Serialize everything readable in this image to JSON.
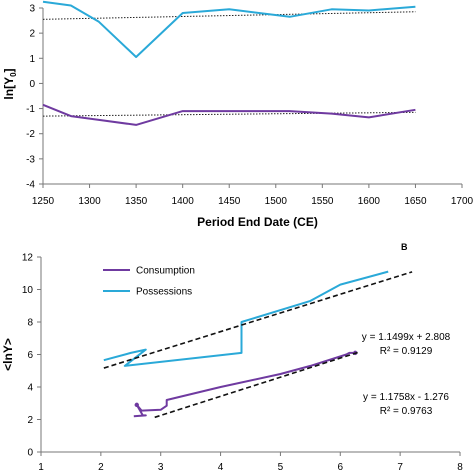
{
  "chart_data": [
    {
      "panel_label": "",
      "type": "line",
      "xlabel": "Period End Date (CE)",
      "ylabel": "ln[Y0]",
      "ylabel_main": "ln[Y",
      "ylabel_sub": "0",
      "ylabel_close": "]",
      "xlim": [
        1250,
        1700
      ],
      "ylim": [
        -4,
        3
      ],
      "xticks": [
        "1250",
        "1300",
        "1350",
        "1400",
        "1450",
        "1500",
        "1550",
        "1600",
        "1650",
        "1700"
      ],
      "yticks": [
        "-4",
        "-3",
        "-2",
        "-1",
        "0",
        "1",
        "2",
        "3"
      ],
      "grid": false,
      "series": [
        {
          "color": "#2aa9d8",
          "x": [
            1250,
            1280,
            1310,
            1350,
            1400,
            1450,
            1515,
            1560,
            1600,
            1650
          ],
          "y": [
            3.25,
            3.1,
            2.45,
            1.05,
            2.8,
            2.95,
            2.65,
            2.95,
            2.9,
            3.05
          ]
        },
        {
          "color": "#6f3aa0",
          "x": [
            1250,
            1280,
            1310,
            1350,
            1400,
            1450,
            1515,
            1560,
            1600,
            1650
          ],
          "y": [
            -0.85,
            -1.3,
            -1.45,
            -1.65,
            -1.1,
            -1.1,
            -1.1,
            -1.2,
            -1.35,
            -1.05
          ]
        }
      ],
      "trendlines": [
        {
          "style": "dotted",
          "x": [
            1250,
            1650
          ],
          "y": [
            2.55,
            2.85
          ]
        },
        {
          "style": "dotted",
          "x": [
            1250,
            1650
          ],
          "y": [
            -1.3,
            -1.15
          ]
        }
      ]
    },
    {
      "panel_label": "B",
      "type": "line",
      "xlabel": "",
      "ylabel": "<lnY>",
      "xlim": [
        1,
        8
      ],
      "ylim": [
        0,
        12
      ],
      "xticks": [
        "1",
        "2",
        "3",
        "4",
        "5",
        "6",
        "7",
        "8"
      ],
      "yticks": [
        "0",
        "2",
        "4",
        "6",
        "8",
        "10",
        "12"
      ],
      "grid": false,
      "legend_position": "top-left",
      "series": [
        {
          "name": "Consumption",
          "color": "#6f3aa0",
          "x": [
            2.55,
            2.75,
            2.7,
            2.6,
            2.68,
            3.0,
            3.1,
            3.1,
            4.0,
            5.0,
            5.5,
            6.1,
            6.15,
            6.25
          ],
          "y": [
            2.2,
            2.25,
            2.25,
            2.9,
            2.55,
            2.6,
            2.85,
            3.2,
            4.0,
            4.8,
            5.3,
            6.0,
            6.1,
            6.1
          ]
        },
        {
          "name": "Possessions",
          "color": "#2aa9d8",
          "x": [
            2.05,
            2.5,
            2.75,
            2.4,
            4.35,
            4.35,
            5.5,
            6.0,
            6.8
          ],
          "y": [
            5.65,
            6.1,
            6.3,
            5.3,
            6.1,
            8.0,
            9.3,
            10.3,
            11.1
          ]
        }
      ],
      "trendlines": [
        {
          "style": "dashed",
          "x": [
            2.05,
            7.2
          ],
          "y": [
            5.165,
            11.087
          ],
          "equation": "y = 1.1499x + 2.808",
          "r2": "R² = 0.9129"
        },
        {
          "style": "dashed",
          "x": [
            2.9,
            6.3
          ],
          "y": [
            2.134,
            6.132
          ],
          "equation": "y = 1.1758x - 1.276",
          "r2": "R² = 0.9763"
        }
      ]
    }
  ]
}
